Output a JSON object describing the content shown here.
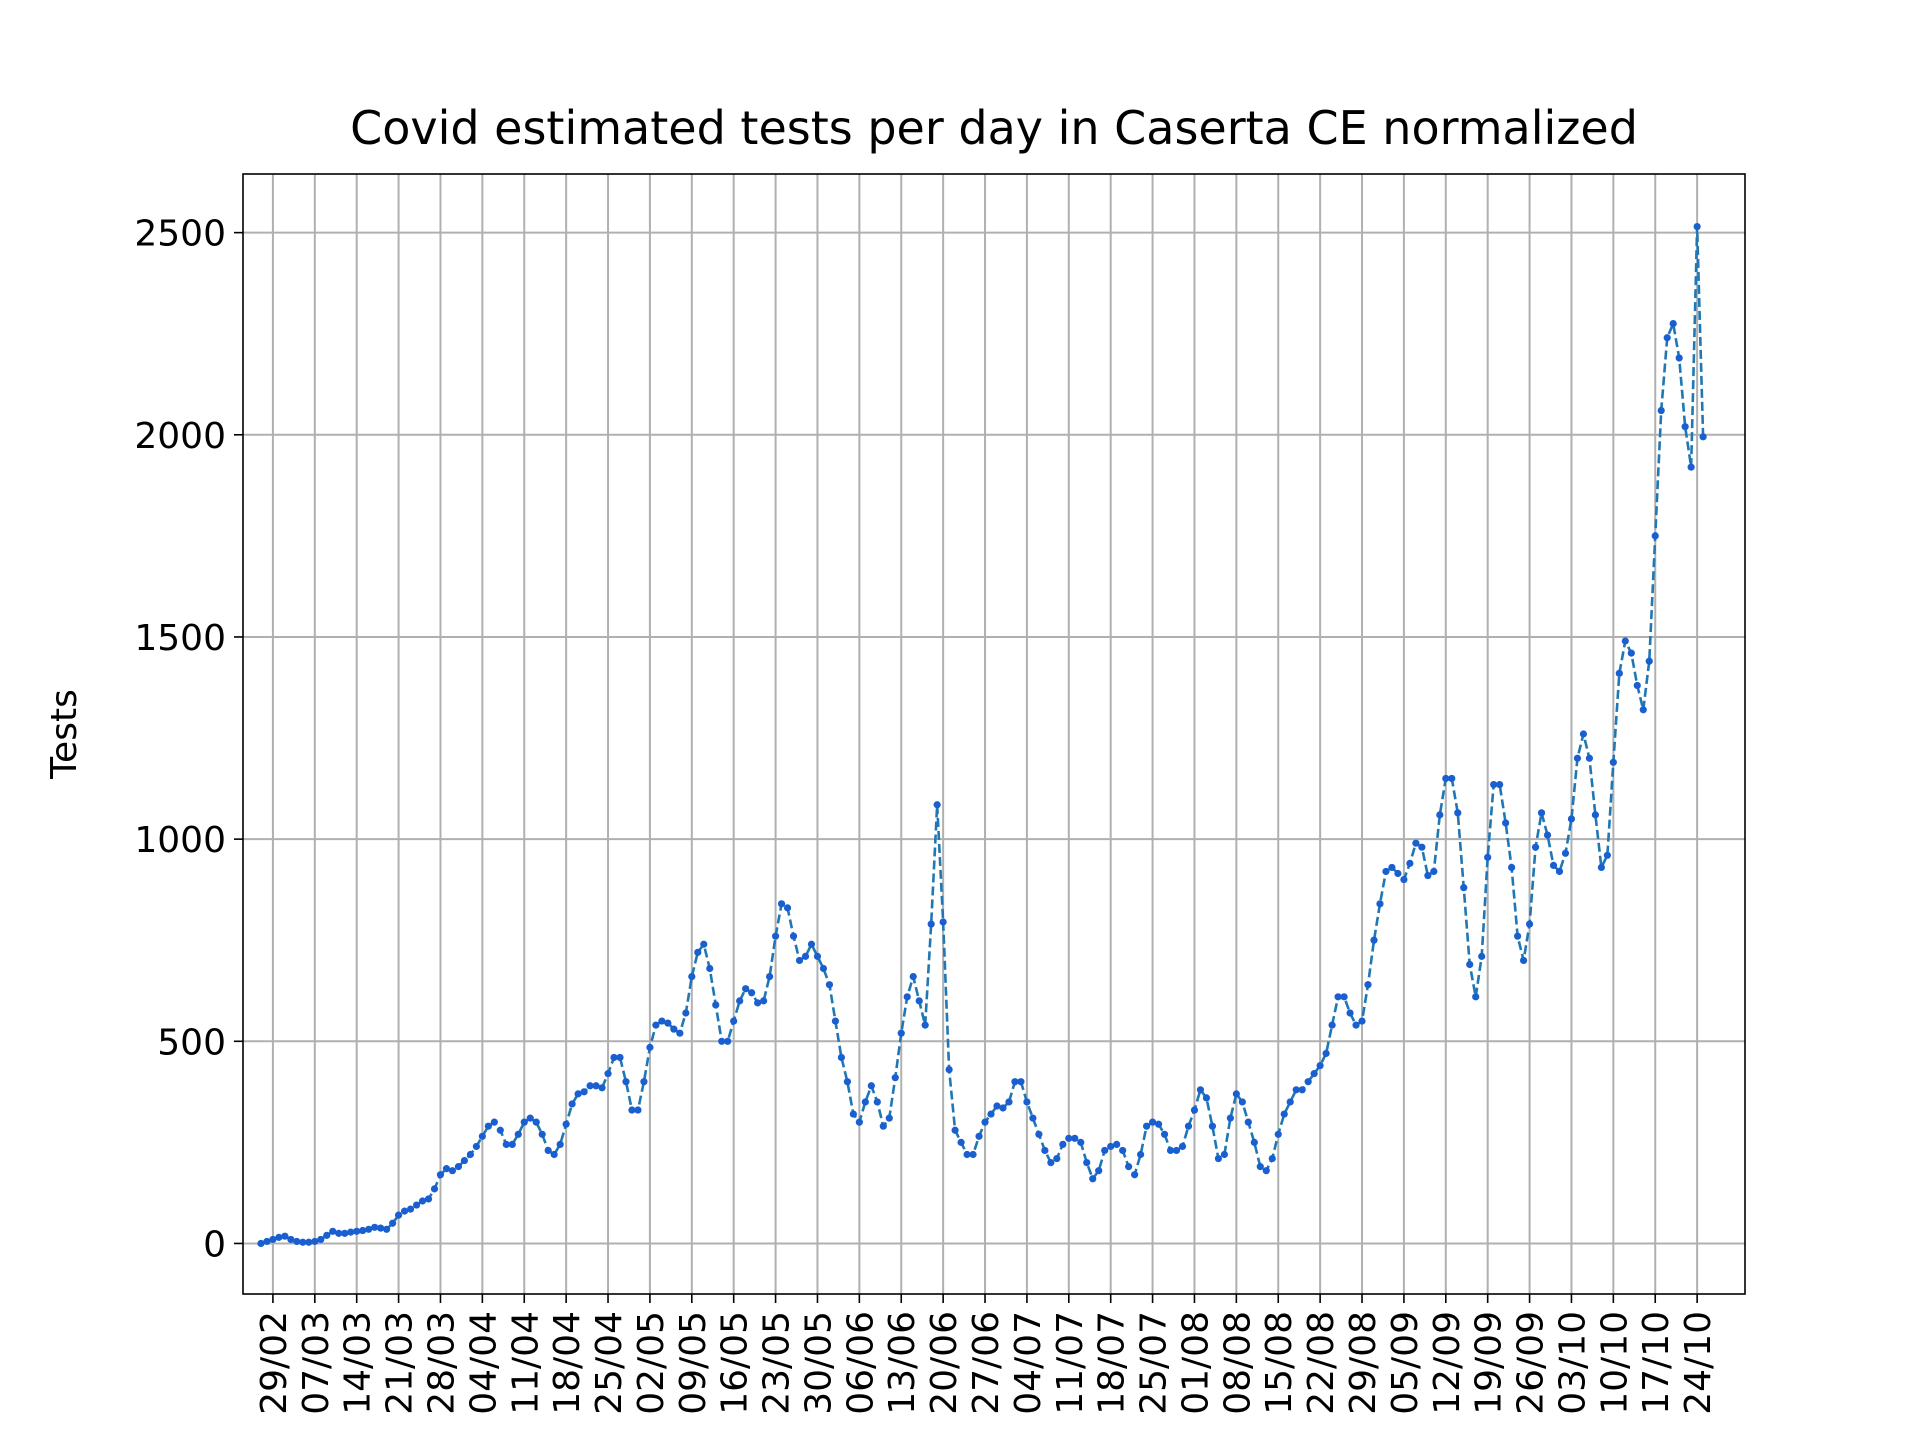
{
  "chart_data": {
    "type": "line",
    "title": "Covid estimated tests per day in Caserta CE normalized",
    "xlabel": "",
    "ylabel": "Tests",
    "grid": true,
    "legend": "none",
    "colors": {
      "line": "#1f77b4",
      "marker": "#1a5fd0",
      "grid": "#b0b0b0"
    },
    "line_style": "dashed",
    "start_date": "2020-02-27",
    "xlim": [
      "2020-02-24",
      "2020-11-01"
    ],
    "ylim": [
      -125,
      2645
    ],
    "yticks": [
      0,
      500,
      1000,
      1500,
      2000,
      2500
    ],
    "xticks": [
      "29/02",
      "07/03",
      "14/03",
      "21/03",
      "28/03",
      "04/04",
      "11/04",
      "18/04",
      "25/04",
      "02/05",
      "09/05",
      "16/05",
      "23/05",
      "30/05",
      "06/06",
      "13/06",
      "20/06",
      "27/06",
      "04/07",
      "11/07",
      "18/07",
      "25/07",
      "01/08",
      "08/08",
      "15/08",
      "22/08",
      "29/08",
      "05/09",
      "12/09",
      "19/09",
      "26/09",
      "03/10",
      "10/10",
      "17/10",
      "24/10"
    ],
    "series": [
      {
        "name": "",
        "values": [
          0,
          5,
          10,
          15,
          18,
          10,
          5,
          3,
          3,
          5,
          10,
          20,
          30,
          25,
          25,
          28,
          30,
          32,
          35,
          40,
          38,
          35,
          50,
          70,
          80,
          85,
          95,
          105,
          110,
          135,
          170,
          185,
          180,
          190,
          205,
          220,
          240,
          265,
          290,
          300,
          280,
          245,
          245,
          270,
          300,
          310,
          300,
          270,
          230,
          220,
          245,
          295,
          345,
          370,
          375,
          390,
          390,
          385,
          420,
          460,
          460,
          400,
          330,
          330,
          400,
          485,
          540,
          550,
          545,
          530,
          520,
          570,
          660,
          720,
          740,
          680,
          590,
          500,
          500,
          550,
          600,
          630,
          620,
          595,
          600,
          660,
          760,
          840,
          830,
          760,
          700,
          710,
          740,
          710,
          680,
          640,
          550,
          460,
          400,
          320,
          300,
          350,
          390,
          350,
          290,
          310,
          410,
          520,
          610,
          660,
          600,
          540,
          790,
          1085,
          795,
          430,
          280,
          250,
          220,
          220,
          265,
          300,
          320,
          340,
          335,
          350,
          400,
          400,
          350,
          310,
          270,
          230,
          200,
          210,
          245,
          260,
          260,
          250,
          200,
          160,
          180,
          230,
          240,
          245,
          230,
          190,
          170,
          220,
          290,
          300,
          295,
          270,
          230,
          230,
          240,
          290,
          330,
          380,
          360,
          290,
          210,
          220,
          310,
          370,
          350,
          300,
          250,
          190,
          180,
          210,
          270,
          320,
          350,
          380,
          380,
          400,
          420,
          440,
          470,
          540,
          610,
          610,
          570,
          540,
          550,
          640,
          750,
          840,
          920,
          930,
          915,
          900,
          940,
          990,
          980,
          910,
          920,
          1060,
          1150,
          1150,
          1065,
          880,
          690,
          610,
          710,
          955,
          1135,
          1135,
          1040,
          930,
          760,
          700,
          790,
          980,
          1065,
          1010,
          935,
          920,
          965,
          1050,
          1200,
          1260,
          1200,
          1060,
          930,
          960,
          1190,
          1410,
          1490,
          1460,
          1380,
          1320,
          1440,
          1750,
          2060,
          2240,
          2275,
          2190,
          2020,
          1920,
          2515,
          1995
        ]
      }
    ]
  }
}
